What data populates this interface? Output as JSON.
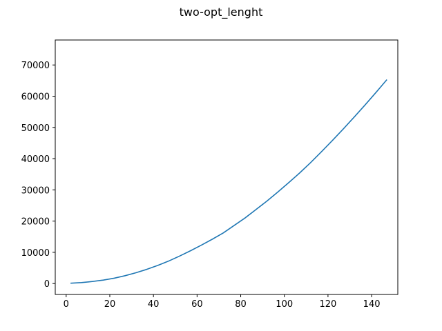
{
  "chart_data": {
    "type": "line",
    "title": "two-opt_lenght",
    "xlabel": "",
    "ylabel": "",
    "xlim": [
      -5,
      152
    ],
    "ylim": [
      -3500,
      78000
    ],
    "xticks": [
      0,
      20,
      40,
      60,
      80,
      100,
      120,
      140
    ],
    "yticks": [
      0,
      10000,
      20000,
      30000,
      40000,
      50000,
      60000,
      70000
    ],
    "grid": false,
    "series": [
      {
        "color": "#1f77b4",
        "x": [
          2,
          7,
          12,
          17,
          22,
          27,
          32,
          37,
          42,
          47,
          52,
          57,
          62,
          67,
          72,
          77,
          82,
          87,
          92,
          97,
          102,
          107,
          112,
          117,
          122,
          127,
          132,
          137,
          142,
          147
        ],
        "y": [
          100,
          300,
          650,
          1100,
          1700,
          2500,
          3450,
          4550,
          5800,
          7200,
          8800,
          10500,
          12300,
          14200,
          16200,
          18600,
          21000,
          23700,
          26400,
          29300,
          32300,
          35400,
          38700,
          42200,
          45800,
          49500,
          53300,
          57200,
          61200,
          65300
        ]
      }
    ]
  }
}
